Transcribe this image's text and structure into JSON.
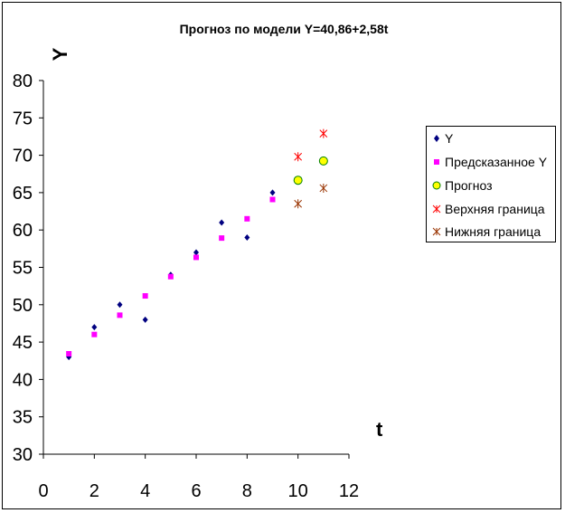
{
  "chart_data": {
    "type": "scatter",
    "title": "Прогноз по модели Y=40,86+2,58t",
    "xlabel": "t",
    "ylabel": "Y",
    "xlim": [
      0,
      12
    ],
    "ylim": [
      30,
      80
    ],
    "xticks": [
      "0",
      "2",
      "4",
      "6",
      "8",
      "10",
      "12"
    ],
    "yticks": [
      "30",
      "35",
      "40",
      "45",
      "50",
      "55",
      "60",
      "65",
      "70",
      "75",
      "80"
    ],
    "grid": false,
    "legend_position": "right",
    "series": [
      {
        "name": "Y",
        "marker": "diamond",
        "color": "#000080",
        "x": [
          1,
          2,
          3,
          4,
          5,
          6,
          7,
          8,
          9
        ],
        "y": [
          43,
          47,
          50,
          48,
          54,
          57,
          61,
          59,
          65
        ]
      },
      {
        "name": "Предсказанное Y",
        "marker": "square",
        "color": "#ff00ff",
        "x": [
          1,
          2,
          3,
          4,
          5,
          6,
          7,
          8,
          9
        ],
        "y": [
          43.44,
          46.02,
          48.6,
          51.18,
          53.76,
          56.34,
          58.92,
          61.5,
          64.08
        ]
      },
      {
        "name": "Прогноз",
        "marker": "circle",
        "color": "#ffff00",
        "x": [
          10,
          11
        ],
        "y": [
          66.66,
          69.24
        ]
      },
      {
        "name": "Верхняя граница",
        "marker": "star",
        "color": "#ff0000",
        "x": [
          10,
          11
        ],
        "y": [
          69.8,
          72.9
        ]
      },
      {
        "name": "Нижняя граница",
        "marker": "star",
        "color": "#993300",
        "x": [
          10,
          11
        ],
        "y": [
          63.5,
          65.6
        ]
      }
    ]
  }
}
